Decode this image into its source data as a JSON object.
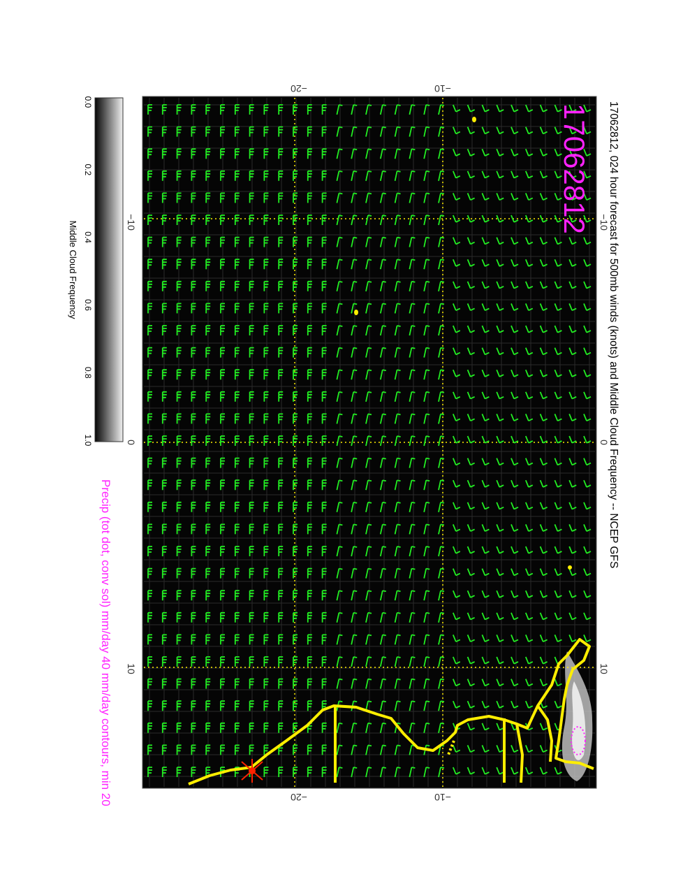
{
  "figure": {
    "title": "17062812, 024 hour forecast for 500mb winds (knots) and Middle Cloud Frequency -- NCEP GFS",
    "stamp": "17062812",
    "precip_note": "Precip (tot dot, conv sol) mm/day 40 mm/day contours, min 20"
  },
  "colorbar": {
    "label": "Middle Cloud Frequency",
    "ticks": [
      "0.0",
      "0.2",
      "0.4",
      "0.6",
      "0.8",
      "1.0"
    ]
  },
  "axes": {
    "top_ticks": [
      "−20",
      "−10"
    ],
    "bottom_ticks": [
      "−20",
      "−10"
    ],
    "left_ticks": [
      "−10",
      "0",
      "10"
    ],
    "right_ticks": [
      "−10",
      "0",
      "10"
    ]
  },
  "colors": {
    "barb": "#22ee22",
    "coast": "#ffee00",
    "grid": "#ffee00",
    "stamp": "#ff22ff",
    "map_bg": "#050505"
  }
}
